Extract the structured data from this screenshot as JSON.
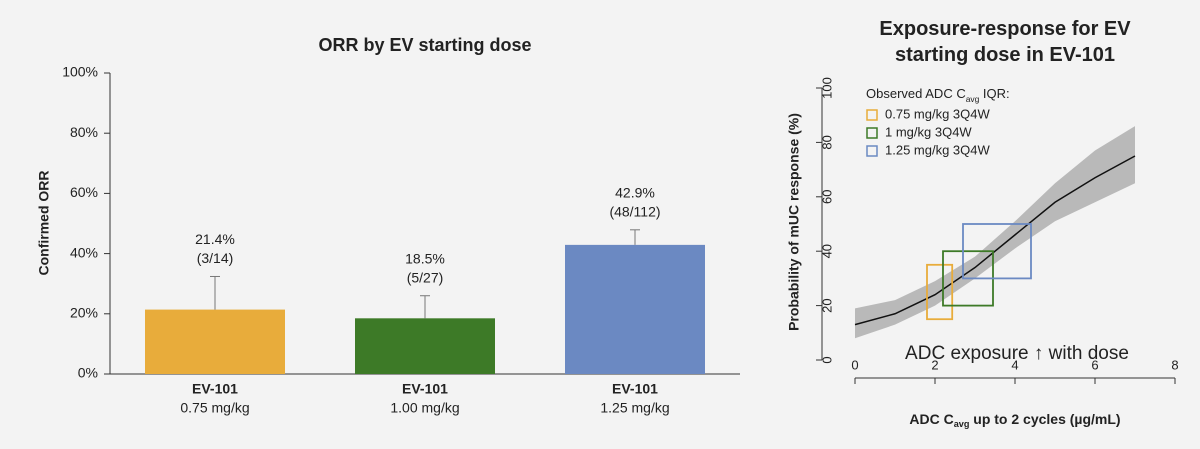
{
  "chart_data": [
    {
      "type": "bar",
      "title": "ORR by EV starting dose",
      "ylabel": "Confirmed ORR",
      "categories": [
        "EV-101",
        "EV-101",
        "EV-101"
      ],
      "category_sublabels": [
        "0.75 mg/kg",
        "1.00 mg/kg",
        "1.25 mg/kg"
      ],
      "values": [
        21.4,
        18.5,
        42.9
      ],
      "value_labels": [
        "21.4%",
        "18.5%",
        "42.9%"
      ],
      "counts": [
        "(3/14)",
        "(5/27)",
        "(48/112)"
      ],
      "errors": [
        11,
        7.5,
        5
      ],
      "colors": [
        "#e8ac3b",
        "#3d7a27",
        "#6b89c2"
      ],
      "ylim": [
        0,
        100
      ],
      "yticks": [
        {
          "value": 0,
          "label": "0%"
        },
        {
          "value": 20,
          "label": "20%"
        },
        {
          "value": 40,
          "label": "40%"
        },
        {
          "value": 60,
          "label": "60%"
        },
        {
          "value": 80,
          "label": "80%"
        },
        {
          "value": 100,
          "label": "100%"
        }
      ]
    },
    {
      "type": "line",
      "title": "Exposure-response for EV starting dose in EV-101",
      "ylabel": "Probability of mUC response (%)",
      "xlabel": [
        "ADC C",
        "avg",
        " up to 2 cycles (µg/mL)"
      ],
      "legend_title": [
        "Observed ADC C",
        "avg",
        " IQR:"
      ],
      "annotation": "ADC exposure ↑ with dose",
      "x": [
        0,
        1,
        2,
        3,
        4,
        5,
        6,
        7
      ],
      "series": [
        {
          "color": "#111111",
          "values": [
            13,
            17,
            24,
            34,
            46,
            58,
            67,
            75
          ]
        }
      ],
      "band_lower": [
        8,
        13,
        20,
        30,
        41,
        51,
        58,
        65
      ],
      "band_upper": [
        19,
        22,
        29,
        38,
        51,
        65,
        77,
        86
      ],
      "band_color": "#b9b9b9",
      "boxes": [
        {
          "name": "0.75 mg/kg 3Q4W",
          "color": "#e8ac3b",
          "x": [
            1.8,
            2.43
          ],
          "y": [
            15,
            35
          ]
        },
        {
          "name": "1 mg/kg 3Q4W",
          "color": "#3d7a27",
          "x": [
            2.2,
            3.45
          ],
          "y": [
            20,
            40
          ]
        },
        {
          "name": "1.25 mg/kg 3Q4W",
          "color": "#6b89c2",
          "x": [
            2.7,
            4.4
          ],
          "y": [
            30,
            50
          ]
        }
      ],
      "xlim": [
        0,
        8
      ],
      "xticks": [
        0,
        2,
        4,
        6,
        8
      ],
      "ylim": [
        0,
        100
      ],
      "yticks": [
        0,
        20,
        40,
        60,
        80,
        100
      ]
    }
  ]
}
